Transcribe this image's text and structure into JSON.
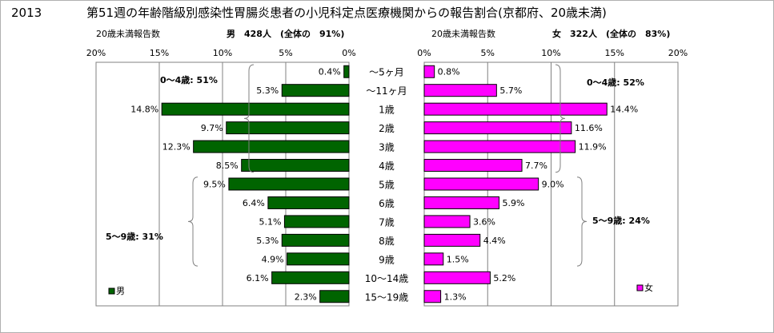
{
  "title": {
    "year": "2013",
    "text": "第51週の年齢階級別感染性胃腸炎患者の小児科定点医療機関からの報告割合(京都府、20歳未満)"
  },
  "chart_data": {
    "type": "bar",
    "orientation": "horizontal-butterfly",
    "xlim": [
      0,
      20
    ],
    "x_ticks": [
      "20%",
      "15%",
      "10%",
      "5%",
      "0%"
    ],
    "x_ticks_right": [
      "0%",
      "5%",
      "10%",
      "15%",
      "20%"
    ],
    "categories": [
      "～5ヶ月",
      "～11ヶ月",
      "1歳",
      "2歳",
      "3歳",
      "4歳",
      "5歳",
      "6歳",
      "7歳",
      "8歳",
      "9歳",
      "10～14歳",
      "15～19歳"
    ],
    "series": [
      {
        "name": "男",
        "color": "#006400",
        "header_label": "20歳未満報告数",
        "header_count": "男　428人　(全体の　91%)",
        "values": [
          0.4,
          5.3,
          14.8,
          9.7,
          12.3,
          8.5,
          9.5,
          6.4,
          5.1,
          5.3,
          4.9,
          6.1,
          2.3
        ],
        "value_labels": [
          "0.4%",
          "5.3%",
          "14.8%",
          "9.7%",
          "12.3%",
          "8.5%",
          "9.5%",
          "6.4%",
          "5.1%",
          "5.3%",
          "4.9%",
          "6.1%",
          "2.3%"
        ],
        "group_labels": [
          "0～4歳: 51%",
          "5～9歳: 31%"
        ]
      },
      {
        "name": "女",
        "color": "#ff00ff",
        "header_label": "20歳未満報告数",
        "header_count": "女　322人　(全体の　83%)",
        "values": [
          0.8,
          5.7,
          14.4,
          11.6,
          11.9,
          7.7,
          9.0,
          5.9,
          3.6,
          4.4,
          1.5,
          5.2,
          1.3
        ],
        "value_labels": [
          "0.8%",
          "5.7%",
          "14.4%",
          "11.6%",
          "11.9%",
          "7.7%",
          "9.0%",
          "5.9%",
          "3.6%",
          "4.4%",
          "1.5%",
          "5.2%",
          "1.3%"
        ],
        "group_labels": [
          "0～4歳: 52%",
          "5～9歳: 24%"
        ]
      }
    ],
    "grid": true,
    "legend": [
      "男",
      "女"
    ]
  }
}
